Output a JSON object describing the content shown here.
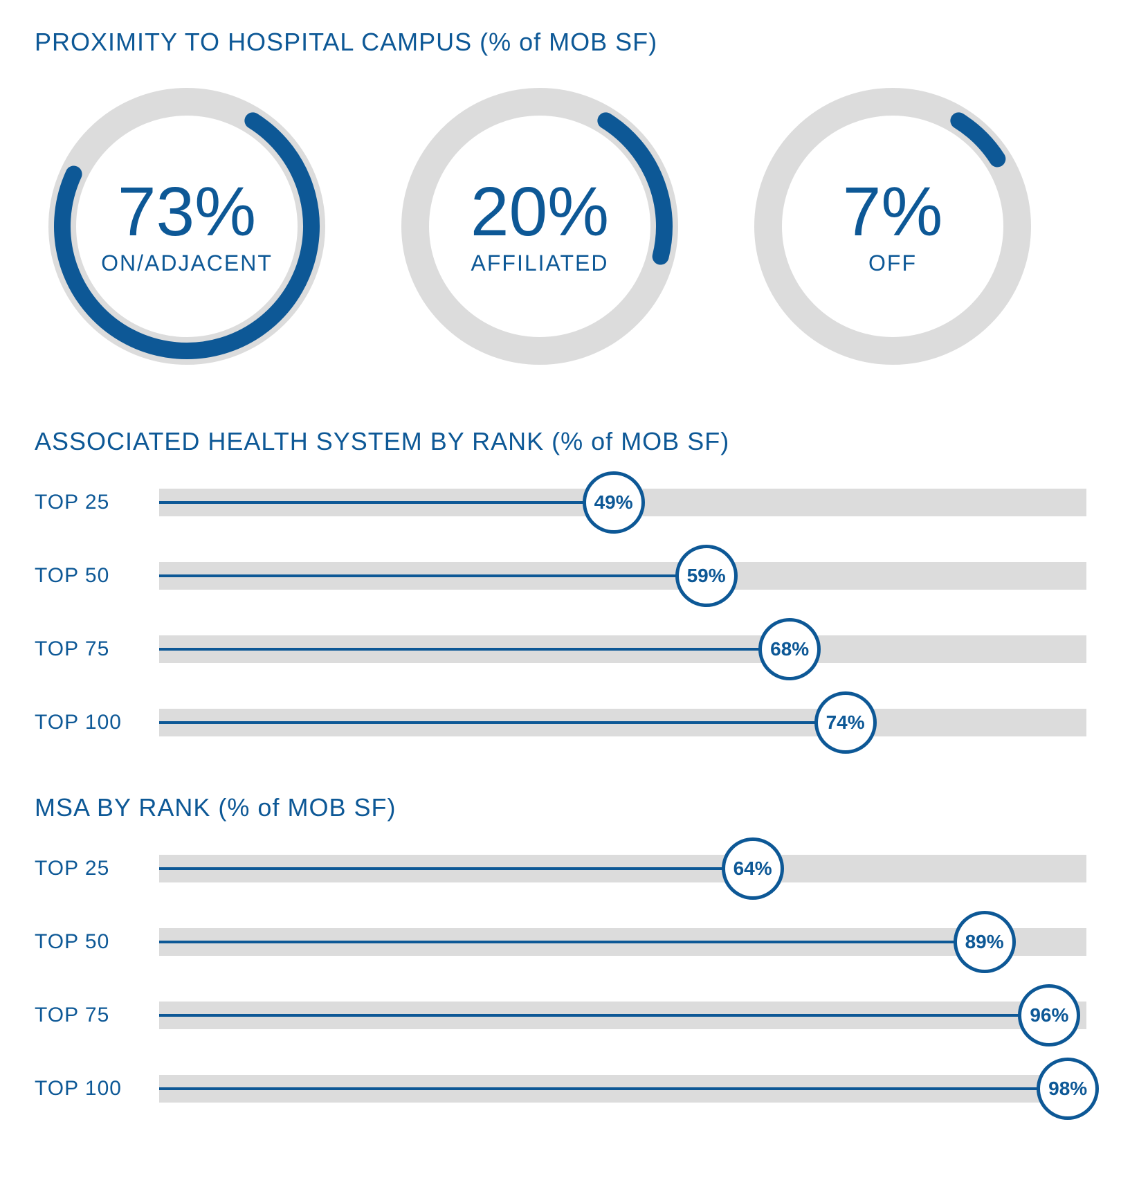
{
  "colors": {
    "primary": "#0d5896",
    "track": "#dcdcdc",
    "background": "#ffffff"
  },
  "typography": {
    "title_fontsize": 36,
    "donut_value_fontsize": 100,
    "donut_label_fontsize": 32,
    "bar_label_fontsize": 30,
    "bubble_fontsize": 28
  },
  "proximity": {
    "title": "PROXIMITY TO HOSPITAL CAMPUS (% of MOB SF)",
    "ring_outer_radius": 200,
    "ring_stroke_width": 40,
    "arc_stroke_width": 24,
    "arc_start_angle_deg": 32,
    "items": [
      {
        "value": 73,
        "value_text": "73%",
        "label": "ON/ADJACENT"
      },
      {
        "value": 20,
        "value_text": "20%",
        "label": "AFFILIATED"
      },
      {
        "value": 7,
        "value_text": "7%",
        "label": "OFF"
      }
    ]
  },
  "health_system": {
    "title": "ASSOCIATED HEALTH SYSTEM BY RANK (% of MOB SF)",
    "track_height": 40,
    "line_height": 4,
    "bubble_diameter": 90,
    "bubble_border_width": 5,
    "rows": [
      {
        "label": "TOP 25",
        "value": 49,
        "value_text": "49%"
      },
      {
        "label": "TOP 50",
        "value": 59,
        "value_text": "59%"
      },
      {
        "label": "TOP 75",
        "value": 68,
        "value_text": "68%"
      },
      {
        "label": "TOP 100",
        "value": 74,
        "value_text": "74%"
      }
    ]
  },
  "msa": {
    "title": "MSA BY RANK (% of MOB SF)",
    "track_height": 40,
    "line_height": 4,
    "bubble_diameter": 90,
    "bubble_border_width": 5,
    "rows": [
      {
        "label": "TOP 25",
        "value": 64,
        "value_text": "64%"
      },
      {
        "label": "TOP 50",
        "value": 89,
        "value_text": "89%"
      },
      {
        "label": "TOP 75",
        "value": 96,
        "value_text": "96%"
      },
      {
        "label": "TOP 100",
        "value": 98,
        "value_text": "98%"
      }
    ]
  }
}
